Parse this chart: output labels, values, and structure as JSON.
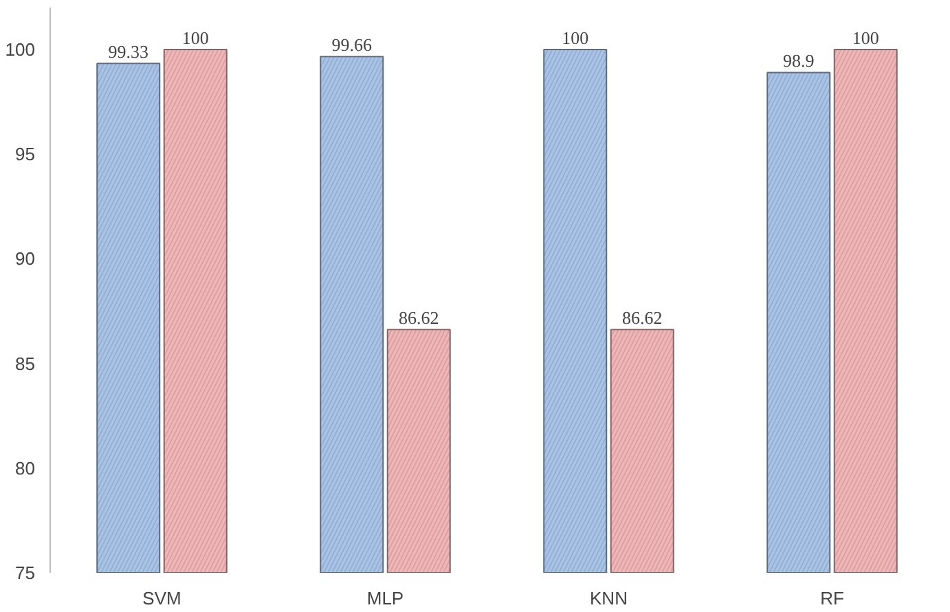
{
  "chart_data": {
    "type": "bar",
    "categories": [
      "SVM",
      "MLP",
      "KNN",
      "RF"
    ],
    "series": [
      {
        "color": "#a9c4e8",
        "values": [
          99.33,
          99.66,
          100,
          98.9
        ]
      },
      {
        "color": "#f2b6b8",
        "values": [
          100,
          86.62,
          86.62,
          100
        ]
      }
    ],
    "ylim": [
      75,
      102
    ],
    "yticks": [
      75,
      80,
      85,
      90,
      95,
      100
    ],
    "grid": false,
    "data_labels": true
  }
}
